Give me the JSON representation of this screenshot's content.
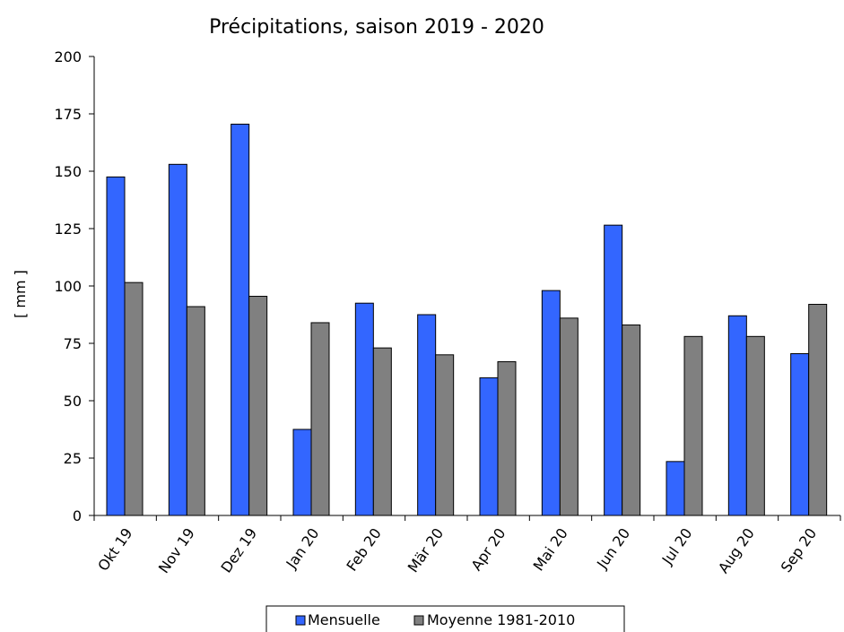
{
  "chart_data": {
    "type": "bar",
    "title": "Précipitations, saison 2019 - 2020",
    "xlabel": "",
    "ylabel": "[ mm ]",
    "ylim": [
      0,
      200
    ],
    "yticks": [
      0,
      25,
      50,
      75,
      100,
      125,
      150,
      175,
      200
    ],
    "categories": [
      "Okt 19",
      "Nov 19",
      "Dez 19",
      "Jan 20",
      "Feb 20",
      "Mär 20",
      "Apr 20",
      "Mai 20",
      "Jun 20",
      "Jul 20",
      "Aug 20",
      "Sep 20"
    ],
    "series": [
      {
        "name": "Mensuelle",
        "color": "#3366ff",
        "values": [
          147.5,
          153,
          170.5,
          37.5,
          92.5,
          87.5,
          60,
          98,
          126.5,
          23.5,
          87,
          70.5
        ]
      },
      {
        "name": "Moyenne 1981-2010",
        "color": "#808080",
        "values": [
          101.5,
          91,
          95.5,
          84,
          73,
          70,
          67,
          86,
          83,
          78,
          78,
          92
        ]
      }
    ],
    "grid": false,
    "legend_position": "bottom"
  }
}
